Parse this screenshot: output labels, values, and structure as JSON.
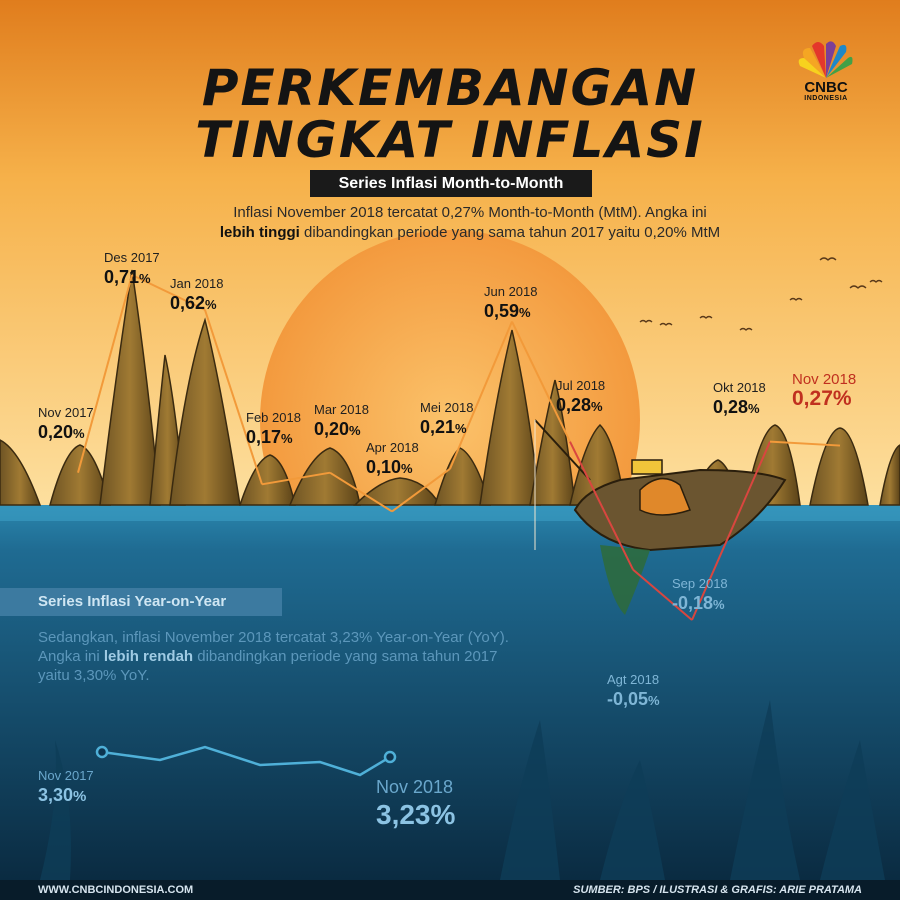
{
  "header": {
    "title_line1": "PERKEMBANGAN",
    "title_line2": "TINGKAT INFLASI",
    "subtitle": "Series Inflasi Month-to-Month",
    "intro_part1": "Inflasi November 2018 tercatat 0,27% Month-to-Month (MtM). Angka ini",
    "intro_bold": "lebih tinggi",
    "intro_part2": "dibandingkan periode yang sama tahun 2017 yaitu 0,20% MtM"
  },
  "logo": {
    "wordmark": "CNBC",
    "sub": "INDONESIA",
    "icon": "peacock-logo-icon"
  },
  "colors": {
    "sky_top": "#e07d1d",
    "sky_bottom": "#fbd88a",
    "sun": "#f6a347",
    "mtm_line": "#e0582a",
    "sea": "#1c6186",
    "yoy_line": "#4fb0d8"
  },
  "chart_data": [
    {
      "type": "line",
      "name": "mtm",
      "categories": [
        "Nov 2017",
        "Des 2017",
        "Jan 2018",
        "Feb 2018",
        "Mar 2018",
        "Apr 2018",
        "Mei 2018",
        "Jun 2018",
        "Jul 2018",
        "Agt 2018",
        "Sep 2018",
        "Okt 2018",
        "Nov 2018"
      ],
      "values": [
        0.2,
        0.71,
        0.62,
        0.17,
        0.2,
        0.1,
        0.21,
        0.59,
        0.28,
        -0.05,
        -0.18,
        0.28,
        0.27
      ],
      "labels": [
        "0,20",
        "0,71",
        "0,62",
        "0,17",
        "0,20",
        "0,10",
        "0,21",
        "0,59",
        "0,28",
        "-0,05",
        "-0,18",
        "0,28",
        "0,27"
      ],
      "unit": "%",
      "highlight_last": true
    },
    {
      "type": "line",
      "name": "yoy",
      "categories": [
        "Nov 2017",
        "Nov 2018"
      ],
      "endpoint_values": [
        3.3,
        3.23
      ],
      "endpoint_labels": [
        "3,30",
        "3,23"
      ],
      "unit": "%"
    }
  ],
  "yoy": {
    "heading": "Series Inflasi Year-on-Year",
    "text_part1": "Sedangkan, inflasi November 2018 tercatat 3,23% Year-on-Year (YoY). Angka ini",
    "text_bold": "lebih rendah",
    "text_part2": "dibandingkan periode yang sama tahun 2017 yaitu 3,30% YoY."
  },
  "footer": {
    "website": "WWW.CNBCINDONESIA.COM",
    "source": "SUMBER: BPS / ILUSTRASI & GRAFIS: ARIE PRATAMA"
  }
}
